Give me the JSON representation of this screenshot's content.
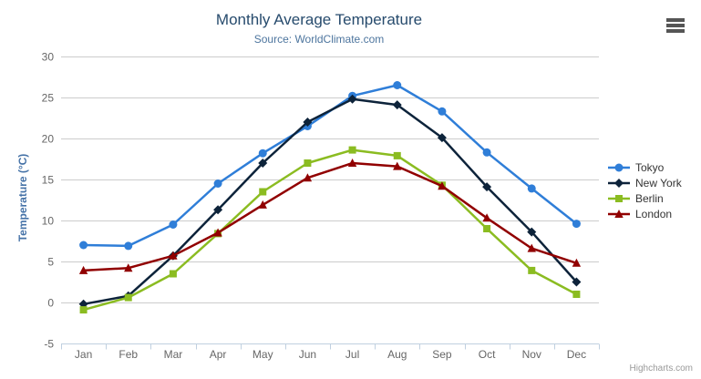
{
  "chart_data": {
    "type": "line",
    "title": "Monthly Average Temperature",
    "subtitle": "Source: WorldClimate.com",
    "xlabel": "",
    "ylabel": "Temperature (°C)",
    "categories": [
      "Jan",
      "Feb",
      "Mar",
      "Apr",
      "May",
      "Jun",
      "Jul",
      "Aug",
      "Sep",
      "Oct",
      "Nov",
      "Dec"
    ],
    "yticks": [
      -5,
      0,
      5,
      10,
      15,
      20,
      25,
      30
    ],
    "ylim": [
      -5,
      30
    ],
    "grid": true,
    "legend_position": "right",
    "series": [
      {
        "name": "Tokyo",
        "color": "#2f7ed8",
        "marker": "circle",
        "values": [
          7.0,
          6.9,
          9.5,
          14.5,
          18.2,
          21.5,
          25.2,
          26.5,
          23.3,
          18.3,
          13.9,
          9.6
        ]
      },
      {
        "name": "New York",
        "color": "#0d233a",
        "marker": "diamond",
        "values": [
          -0.2,
          0.8,
          5.7,
          11.3,
          17.0,
          22.0,
          24.8,
          24.1,
          20.1,
          14.1,
          8.6,
          2.5
        ]
      },
      {
        "name": "Berlin",
        "color": "#8bbc21",
        "marker": "square",
        "values": [
          -0.9,
          0.6,
          3.5,
          8.4,
          13.5,
          17.0,
          18.6,
          17.9,
          14.3,
          9.0,
          3.9,
          1.0
        ]
      },
      {
        "name": "London",
        "color": "#910000",
        "marker": "triangle",
        "values": [
          3.9,
          4.2,
          5.7,
          8.5,
          11.9,
          15.2,
          17.0,
          16.6,
          14.2,
          10.3,
          6.6,
          4.8
        ]
      }
    ],
    "colors": {
      "title": "#274b6d",
      "subtitle": "#4d759e",
      "axis_label": "#666666",
      "gridline": "#cccccc",
      "axis_line": "#c0d0e0"
    },
    "credits": "Highcharts.com"
  },
  "icons": {
    "export_menu": "hamburger-menu-icon"
  }
}
